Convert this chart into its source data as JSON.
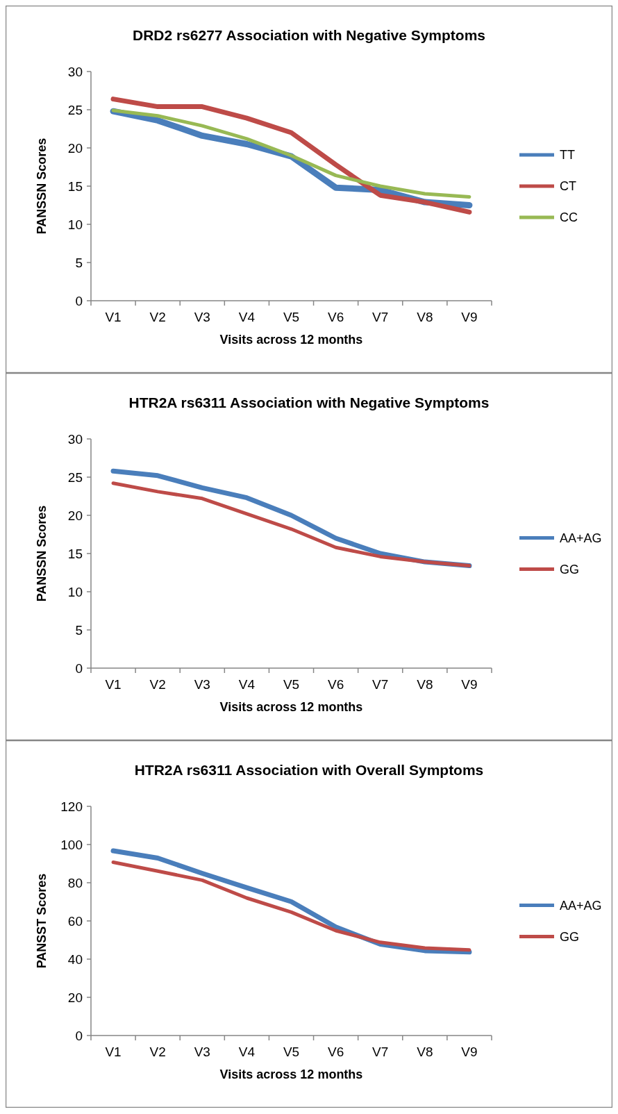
{
  "chart_data": [
    {
      "type": "line",
      "title": "DRD2 rs6277 Association with Negative Symptoms",
      "xlabel": "Visits across 12 months",
      "ylabel": "PANSSN Scores",
      "categories": [
        "V1",
        "V2",
        "V3",
        "V4",
        "V5",
        "V6",
        "V7",
        "V8",
        "V9"
      ],
      "ylim": [
        0,
        30
      ],
      "yticks": [
        0,
        5,
        10,
        15,
        20,
        25,
        30
      ],
      "legend": "right",
      "grid": false,
      "marker": "none",
      "series": [
        {
          "name": "TT",
          "color": "#4a7ebb",
          "values": [
            24.8,
            23.6,
            21.6,
            20.5,
            18.9,
            14.8,
            14.5,
            12.9,
            12.5
          ]
        },
        {
          "name": "CT",
          "color": "#be4b48",
          "values": [
            26.4,
            25.4,
            25.4,
            23.9,
            22,
            17.8,
            13.8,
            12.9,
            11.6
          ]
        },
        {
          "name": "CC",
          "color": "#98b954",
          "values": [
            24.9,
            24.2,
            22.9,
            21.2,
            19.0,
            16.4,
            15.0,
            14,
            13.6
          ]
        }
      ]
    },
    {
      "type": "line",
      "title": "HTR2A rs6311 Association with Negative Symptoms",
      "xlabel": "Visits across 12 months",
      "ylabel": "PANSSN Scores",
      "categories": [
        "V1",
        "V2",
        "V3",
        "V4",
        "V5",
        "V6",
        "V7",
        "V8",
        "V9"
      ],
      "ylim": [
        0,
        30
      ],
      "yticks": [
        0,
        5,
        10,
        15,
        20,
        25,
        30
      ],
      "legend": "right",
      "grid": false,
      "marker": "none",
      "series": [
        {
          "name": "AA+AG",
          "color": "#4a7ebb",
          "values": [
            25.8,
            25.2,
            23.6,
            22.3,
            20.0,
            17.0,
            15.0,
            13.9,
            13.4
          ]
        },
        {
          "name": "GG",
          "color": "#be4b48",
          "values": [
            24.2,
            23.1,
            22.2,
            20.2,
            18.2,
            15.8,
            14.6,
            13.9,
            13.4
          ]
        }
      ]
    },
    {
      "type": "line",
      "title": "HTR2A rs6311 Association with Overall Symptoms",
      "xlabel": "Visits across 12 months",
      "ylabel": "PANSST Scores",
      "categories": [
        "V1",
        "V2",
        "V3",
        "V4",
        "V5",
        "V6",
        "V7",
        "V8",
        "V9"
      ],
      "ylim": [
        0,
        120
      ],
      "yticks": [
        0,
        20,
        40,
        60,
        80,
        100,
        120
      ],
      "legend": "right",
      "grid": false,
      "marker": "none",
      "series": [
        {
          "name": "AA+AG",
          "color": "#4a7ebb",
          "values": [
            96.7,
            92.9,
            84.9,
            77.4,
            70.1,
            56.8,
            47.8,
            44.4,
            43.7
          ]
        },
        {
          "name": "GG",
          "color": "#be4b48",
          "values": [
            90.7,
            86.1,
            81.3,
            72.0,
            64.6,
            54.9,
            48.8,
            45.8,
            44.8
          ]
        }
      ]
    }
  ]
}
